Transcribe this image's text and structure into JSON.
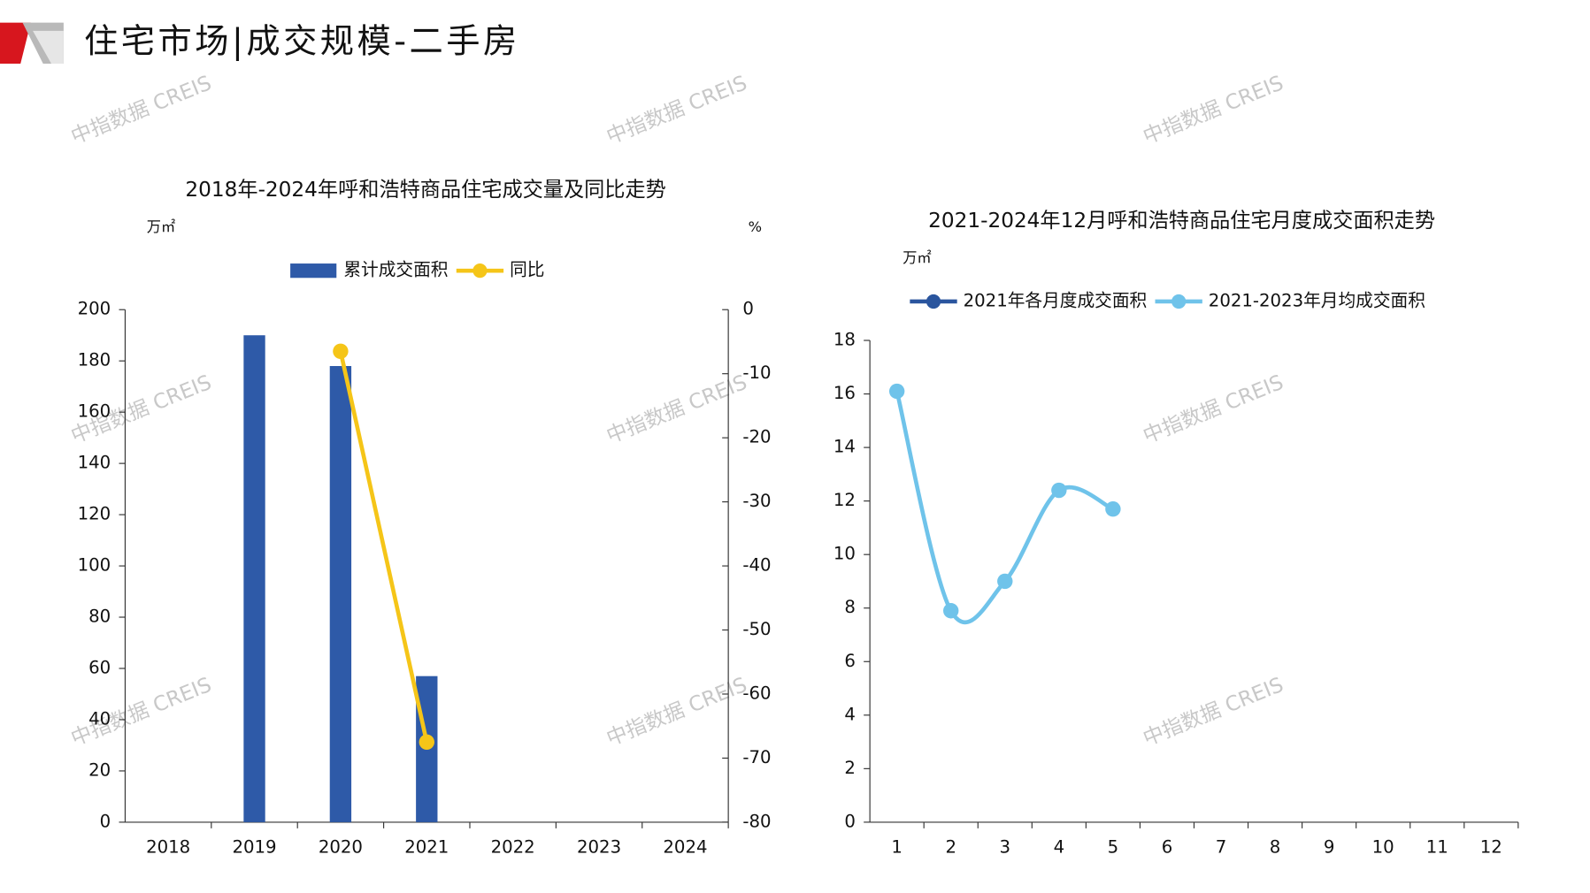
{
  "header": {
    "title": "住宅市场|成交规模-二手房"
  },
  "watermarks": [
    "中指数据 CREIS",
    "中指数据 CREIS",
    "中指数据 CREIS",
    "中指数据 CREIS",
    "中指数据 CREIS",
    "中指数据 CREIS",
    "中指数据 CREIS",
    "中指数据 CREIS",
    "中指数据 CREIS"
  ],
  "chart_data": [
    {
      "type": "bar",
      "title": "2018年-2024年呼和浩特商品住宅成交量及同比走势",
      "y_label": "万㎡",
      "y2_label": "%",
      "categories": [
        "2018",
        "2019",
        "2020",
        "2021",
        "2022",
        "2023",
        "2024"
      ],
      "series": [
        {
          "name": "累计成交面积",
          "type": "bar",
          "color": "#2e5aa8",
          "values": [
            null,
            190,
            178,
            57,
            null,
            null,
            null
          ]
        },
        {
          "name": "同比",
          "type": "line",
          "axis": "y2",
          "color": "#f5c518",
          "values": [
            null,
            null,
            -6.5,
            -67.5,
            null,
            null,
            null
          ]
        }
      ],
      "ylim": [
        0,
        200
      ],
      "yticks": [
        0,
        20,
        40,
        60,
        80,
        100,
        120,
        140,
        160,
        180,
        200
      ],
      "y2lim": [
        -80,
        0
      ],
      "y2ticks": [
        -80,
        -70,
        -60,
        -50,
        -40,
        -30,
        -20,
        -10,
        0
      ],
      "legend": "top"
    },
    {
      "type": "line",
      "title": "2021-2024年12月呼和浩特商品住宅月度成交面积走势",
      "y_label": "万㎡",
      "categories": [
        "1",
        "2",
        "3",
        "4",
        "5",
        "6",
        "7",
        "8",
        "9",
        "10",
        "11",
        "12"
      ],
      "series": [
        {
          "name": "2021年各月度成交面积",
          "color": "#2a559e",
          "values": [
            null,
            null,
            null,
            null,
            null,
            null,
            null,
            null,
            null,
            null,
            null,
            null
          ]
        },
        {
          "name": "2021-2023年月均成交面积",
          "color": "#6fc3ea",
          "values": [
            16.1,
            7.9,
            9.0,
            12.4,
            11.7,
            null,
            null,
            null,
            null,
            null,
            null,
            null
          ]
        }
      ],
      "ylim": [
        0,
        18
      ],
      "yticks": [
        0,
        2,
        4,
        6,
        8,
        10,
        12,
        14,
        16,
        18
      ],
      "legend": "top"
    }
  ]
}
